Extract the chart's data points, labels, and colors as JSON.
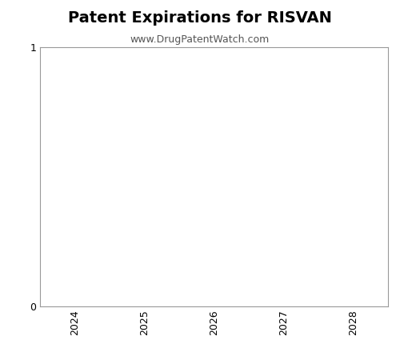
{
  "title": "Patent Expirations for RISVAN",
  "subtitle": "www.DrugPatentWatch.com",
  "title_fontsize": 14,
  "subtitle_fontsize": 9,
  "title_fontweight": "bold",
  "xlim": [
    2023.5,
    2028.5
  ],
  "ylim": [
    0,
    1
  ],
  "xticks": [
    2024,
    2025,
    2026,
    2027,
    2028
  ],
  "yticks": [
    0,
    1
  ],
  "background_color": "#ffffff",
  "axes_edge_color": "#999999",
  "tick_label_color": "#000000",
  "subtitle_color": "#555555"
}
